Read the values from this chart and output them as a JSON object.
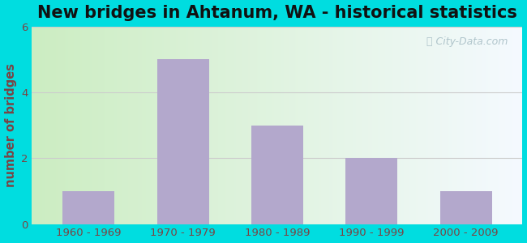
{
  "title": "New bridges in Ahtanum, WA - historical statistics",
  "categories": [
    "1960 - 1969",
    "1970 - 1979",
    "1980 - 1989",
    "1990 - 1999",
    "2000 - 2009"
  ],
  "values": [
    1,
    5,
    3,
    2,
    1
  ],
  "bar_color": "#b3a8cc",
  "ylabel": "number of bridges",
  "ylim": [
    0,
    6
  ],
  "yticks": [
    0,
    2,
    4,
    6
  ],
  "background_outer": "#00dde0",
  "title_fontsize": 15,
  "axis_label_color": "#7a4444",
  "tick_label_color": "#7a4444",
  "watermark": "City-Data.com",
  "grid_color": "#cccccc",
  "bar_width": 0.55
}
